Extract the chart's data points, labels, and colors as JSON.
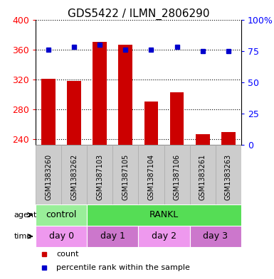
{
  "title": "GDS5422 / ILMN_2806290",
  "samples": [
    "GSM1383260",
    "GSM1383262",
    "GSM1387103",
    "GSM1387105",
    "GSM1387104",
    "GSM1387106",
    "GSM1383261",
    "GSM1383263"
  ],
  "counts": [
    321,
    318,
    370,
    366,
    290,
    302,
    246,
    249
  ],
  "percentiles": [
    76,
    78,
    80,
    76,
    76,
    78,
    75,
    75
  ],
  "ylim_left": [
    232,
    400
  ],
  "ylim_right": [
    0,
    100
  ],
  "yticks_left": [
    240,
    280,
    320,
    360,
    400
  ],
  "yticks_right": [
    0,
    25,
    50,
    75,
    100
  ],
  "bar_color": "#cc0000",
  "dot_color": "#0000cc",
  "bar_bottom": 232,
  "agent_row": {
    "label": "agent",
    "groups": [
      {
        "text": "control",
        "span": [
          0,
          2
        ],
        "color": "#99ee99"
      },
      {
        "text": "RANKL",
        "span": [
          2,
          8
        ],
        "color": "#55dd55"
      }
    ]
  },
  "time_row": {
    "label": "time",
    "groups": [
      {
        "text": "day 0",
        "span": [
          0,
          2
        ],
        "color": "#ee99ee"
      },
      {
        "text": "day 1",
        "span": [
          2,
          4
        ],
        "color": "#cc77cc"
      },
      {
        "text": "day 2",
        "span": [
          4,
          6
        ],
        "color": "#ee99ee"
      },
      {
        "text": "day 3",
        "span": [
          6,
          8
        ],
        "color": "#cc77cc"
      }
    ]
  },
  "legend_items": [
    {
      "label": "count",
      "color": "#cc0000"
    },
    {
      "label": "percentile rank within the sample",
      "color": "#0000cc"
    }
  ],
  "sample_box_color": "#cccccc",
  "sample_box_border": "#aaaaaa",
  "title_fontsize": 11,
  "tick_fontsize": 9,
  "sample_fontsize": 7,
  "row_fontsize": 9,
  "legend_fontsize": 8
}
